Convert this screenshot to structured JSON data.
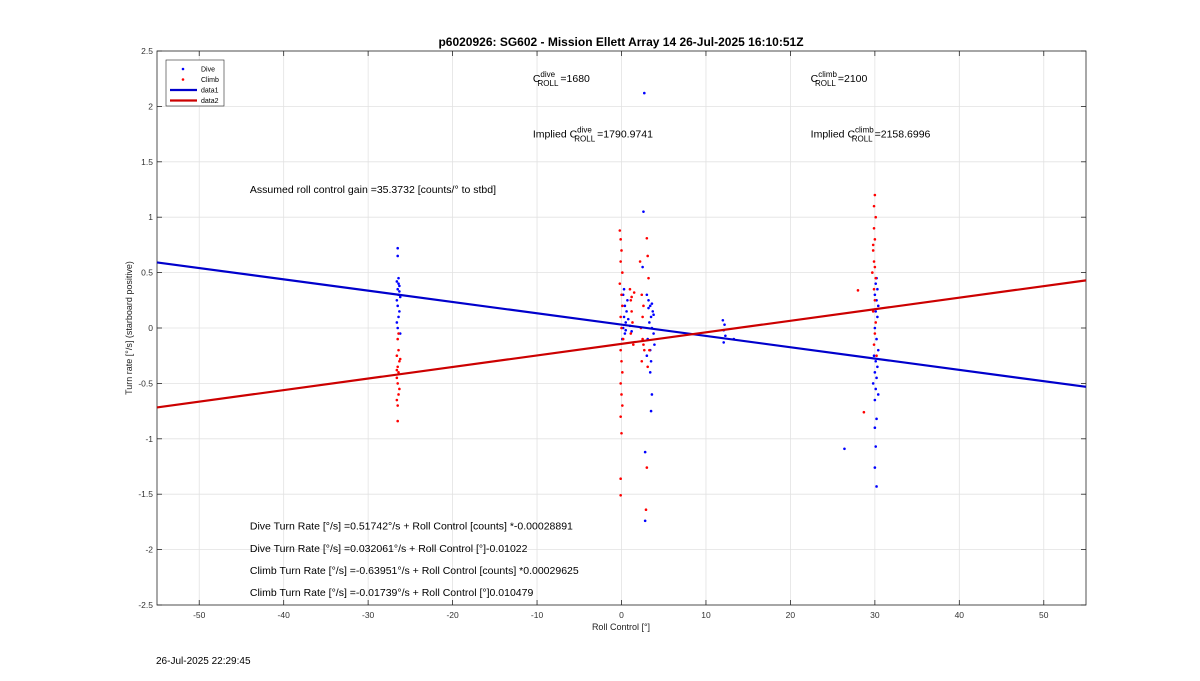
{
  "chart_data": {
    "type": "scatter",
    "title": "p6020926: SG602 - Mission Ellett Array 14 26-Jul-2025 16:10:51Z",
    "xlabel": "Roll Control [°]",
    "ylabel": "Turn rate [°/s] (starboard positive)",
    "xlim": [
      -55,
      55
    ],
    "ylim": [
      -2.5,
      2.5
    ],
    "xticks": [
      -50,
      -40,
      -30,
      -20,
      -10,
      0,
      10,
      20,
      30,
      40,
      50
    ],
    "yticks": [
      -2.5,
      -2,
      -1.5,
      -1,
      -0.5,
      0,
      0.5,
      1,
      1.5,
      2,
      2.5
    ],
    "grid": true,
    "legend_position": "top-left",
    "legend": [
      "Dive",
      "Climb",
      "data1",
      "data2"
    ],
    "series": [
      {
        "name": "Dive",
        "kind": "points",
        "color": "#0000ff",
        "points": [
          [
            -26.5,
            0.72
          ],
          [
            -26.5,
            0.65
          ],
          [
            -26.4,
            0.45
          ],
          [
            -26.6,
            0.42
          ],
          [
            -26.3,
            0.38
          ],
          [
            -26.5,
            0.35
          ],
          [
            -26.4,
            0.3
          ],
          [
            -26.2,
            0.28
          ],
          [
            -26.6,
            0.25
          ],
          [
            -26.5,
            0.2
          ],
          [
            -26.3,
            0.15
          ],
          [
            -26.4,
            0.1
          ],
          [
            -26.6,
            0.05
          ],
          [
            -26.5,
            0.0
          ],
          [
            -26.2,
            -0.05
          ],
          [
            -26.4,
            0.4
          ],
          [
            -26.3,
            0.33
          ],
          [
            0.2,
            0.3
          ],
          [
            0.4,
            0.2
          ],
          [
            0.3,
            0.1
          ],
          [
            0.5,
            0.05
          ],
          [
            0.2,
            0.0
          ],
          [
            0.4,
            -0.05
          ],
          [
            0.6,
            0.15
          ],
          [
            0.1,
            -0.1
          ],
          [
            0.7,
            0.25
          ],
          [
            0.3,
            0.35
          ],
          [
            0.5,
            -0.02
          ],
          [
            0.8,
            0.08
          ],
          [
            1.0,
            0.02
          ],
          [
            1.2,
            -0.03
          ],
          [
            3.0,
            0.3
          ],
          [
            3.2,
            0.25
          ],
          [
            3.4,
            0.2
          ],
          [
            3.5,
            0.1
          ],
          [
            3.3,
            0.05
          ],
          [
            3.6,
            0.0
          ],
          [
            3.8,
            -0.05
          ],
          [
            3.1,
            -0.1
          ],
          [
            3.4,
            -0.2
          ],
          [
            3.7,
            0.15
          ],
          [
            3.9,
            -0.15
          ],
          [
            3.5,
            -0.3
          ],
          [
            3.2,
            0.18
          ],
          [
            3.6,
            0.22
          ],
          [
            3.8,
            0.12
          ],
          [
            3.0,
            -0.25
          ],
          [
            3.4,
            -0.4
          ],
          [
            3.6,
            -0.6
          ],
          [
            3.5,
            -0.75
          ],
          [
            2.7,
            2.12
          ],
          [
            2.6,
            1.05
          ],
          [
            2.5,
            0.55
          ],
          [
            2.8,
            -1.12
          ],
          [
            2.8,
            -1.74
          ],
          [
            12.0,
            0.07
          ],
          [
            12.2,
            0.03
          ],
          [
            12.1,
            -0.02
          ],
          [
            12.3,
            -0.07
          ],
          [
            12.1,
            -0.13
          ],
          [
            13.3,
            -0.1
          ],
          [
            30.2,
            0.45
          ],
          [
            30.1,
            0.4
          ],
          [
            30.3,
            0.35
          ],
          [
            30.0,
            0.3
          ],
          [
            30.2,
            0.25
          ],
          [
            30.4,
            0.2
          ],
          [
            30.1,
            0.15
          ],
          [
            30.3,
            0.1
          ],
          [
            30.0,
            0.0
          ],
          [
            30.2,
            -0.1
          ],
          [
            30.4,
            -0.2
          ],
          [
            29.9,
            -0.25
          ],
          [
            30.1,
            -0.3
          ],
          [
            30.3,
            -0.35
          ],
          [
            30.0,
            -0.4
          ],
          [
            30.2,
            -0.45
          ],
          [
            29.8,
            -0.5
          ],
          [
            30.1,
            -0.55
          ],
          [
            30.4,
            -0.6
          ],
          [
            30.0,
            -0.65
          ],
          [
            30.2,
            -0.82
          ],
          [
            30.0,
            -0.9
          ],
          [
            30.1,
            -1.07
          ],
          [
            30.0,
            -1.26
          ],
          [
            30.2,
            -1.43
          ],
          [
            26.4,
            -1.09
          ]
        ]
      },
      {
        "name": "Climb",
        "kind": "points",
        "color": "#ff0000",
        "points": [
          [
            -26.5,
            -0.1
          ],
          [
            -26.4,
            -0.2
          ],
          [
            -26.6,
            -0.25
          ],
          [
            -26.3,
            -0.3
          ],
          [
            -26.5,
            -0.35
          ],
          [
            -26.4,
            -0.4
          ],
          [
            -26.6,
            -0.45
          ],
          [
            -26.5,
            -0.5
          ],
          [
            -26.3,
            -0.55
          ],
          [
            -26.4,
            -0.6
          ],
          [
            -26.6,
            -0.65
          ],
          [
            -26.5,
            -0.7
          ],
          [
            -26.4,
            -0.05
          ],
          [
            -26.2,
            -0.28
          ],
          [
            -26.6,
            -0.38
          ],
          [
            -26.5,
            -0.84
          ],
          [
            -0.2,
            0.88
          ],
          [
            -0.1,
            0.8
          ],
          [
            0.0,
            0.7
          ],
          [
            -0.1,
            0.6
          ],
          [
            0.1,
            0.5
          ],
          [
            -0.2,
            0.4
          ],
          [
            0.0,
            0.3
          ],
          [
            0.1,
            0.2
          ],
          [
            -0.1,
            0.1
          ],
          [
            0.0,
            0.0
          ],
          [
            0.2,
            -0.1
          ],
          [
            -0.1,
            -0.2
          ],
          [
            0.0,
            -0.3
          ],
          [
            0.1,
            -0.4
          ],
          [
            -0.1,
            -0.5
          ],
          [
            0.0,
            -0.6
          ],
          [
            0.1,
            -0.7
          ],
          [
            -0.1,
            -0.8
          ],
          [
            0.0,
            -0.95
          ],
          [
            -0.1,
            -1.36
          ],
          [
            -0.1,
            -1.51
          ],
          [
            1.0,
            0.35
          ],
          [
            1.1,
            0.25
          ],
          [
            1.2,
            0.15
          ],
          [
            1.3,
            0.05
          ],
          [
            1.1,
            -0.05
          ],
          [
            1.4,
            -0.15
          ],
          [
            1.2,
            0.28
          ],
          [
            1.5,
            0.32
          ],
          [
            2.2,
            0.6
          ],
          [
            2.4,
            0.3
          ],
          [
            2.6,
            0.2
          ],
          [
            2.5,
            0.1
          ],
          [
            2.3,
            0.0
          ],
          [
            2.5,
            -0.1
          ],
          [
            2.7,
            -0.2
          ],
          [
            2.4,
            -0.3
          ],
          [
            2.6,
            -0.15
          ],
          [
            3.0,
            0.81
          ],
          [
            3.1,
            0.65
          ],
          [
            3.2,
            0.45
          ],
          [
            3.3,
            -0.2
          ],
          [
            3.1,
            -0.35
          ],
          [
            3.0,
            -1.26
          ],
          [
            2.9,
            -1.64
          ],
          [
            29.8,
            0.7
          ],
          [
            29.9,
            0.6
          ],
          [
            30.0,
            0.55
          ],
          [
            29.7,
            0.5
          ],
          [
            30.1,
            0.45
          ],
          [
            29.9,
            0.35
          ],
          [
            30.0,
            0.25
          ],
          [
            29.8,
            0.15
          ],
          [
            30.1,
            0.05
          ],
          [
            30.0,
            -0.05
          ],
          [
            29.9,
            -0.15
          ],
          [
            30.2,
            -0.25
          ],
          [
            30.0,
            1.2
          ],
          [
            29.9,
            1.1
          ],
          [
            30.1,
            1.0
          ],
          [
            29.9,
            0.9
          ],
          [
            30.0,
            0.8
          ],
          [
            29.8,
            0.75
          ],
          [
            28.0,
            0.34
          ],
          [
            28.7,
            -0.76
          ]
        ]
      },
      {
        "name": "data1",
        "kind": "line",
        "color": "#0000cc",
        "x": [
          -55,
          55
        ],
        "y": [
          0.592,
          -0.531
        ]
      },
      {
        "name": "data2",
        "kind": "line",
        "color": "#cc0000",
        "x": [
          -55,
          55
        ],
        "y": [
          -0.717,
          0.43
        ]
      }
    ],
    "annotations": [
      {
        "key": "c_dive",
        "x": -10.5,
        "y": 2.22,
        "base": "C",
        "sup": "dive",
        "sub": "ROLL",
        "value": "=1680"
      },
      {
        "key": "c_climb",
        "x": 22.4,
        "y": 2.22,
        "base": "C",
        "sup": "climb",
        "sub": "ROLL",
        "value": "=2100"
      },
      {
        "key": "impl_dive",
        "x": -10.5,
        "y": 1.72,
        "prefix": "Implied ",
        "base": "C",
        "sup": "dive",
        "sub": "ROLL",
        "value": "=1790.9741"
      },
      {
        "key": "impl_climb",
        "x": 22.4,
        "y": 1.72,
        "prefix": "Implied ",
        "base": "C",
        "sup": "climb",
        "sub": "ROLL",
        "value": "=2158.6996"
      },
      {
        "key": "gain",
        "x": -44,
        "y": 1.22,
        "text": "Assumed roll control gain =35.3732 [counts/° to stbd]"
      },
      {
        "key": "fit1",
        "x": -44,
        "y": -1.82,
        "text": "Dive Turn Rate [°/s] =0.51742°/s + Roll Control [counts] *-0.00028891"
      },
      {
        "key": "fit2",
        "x": -44,
        "y": -2.02,
        "text": "Dive Turn Rate [°/s] =0.032061°/s + Roll Control [°]-0.01022"
      },
      {
        "key": "fit3",
        "x": -44,
        "y": -2.22,
        "text": "Climb Turn Rate [°/s] =-0.63951°/s + Roll Control [counts] *0.00029625"
      },
      {
        "key": "fit4",
        "x": -44,
        "y": -2.42,
        "text": "Climb Turn Rate [°/s] =-0.01739°/s + Roll Control [°]0.010479"
      }
    ]
  },
  "footer_timestamp": "26-Jul-2025 22:29:45"
}
